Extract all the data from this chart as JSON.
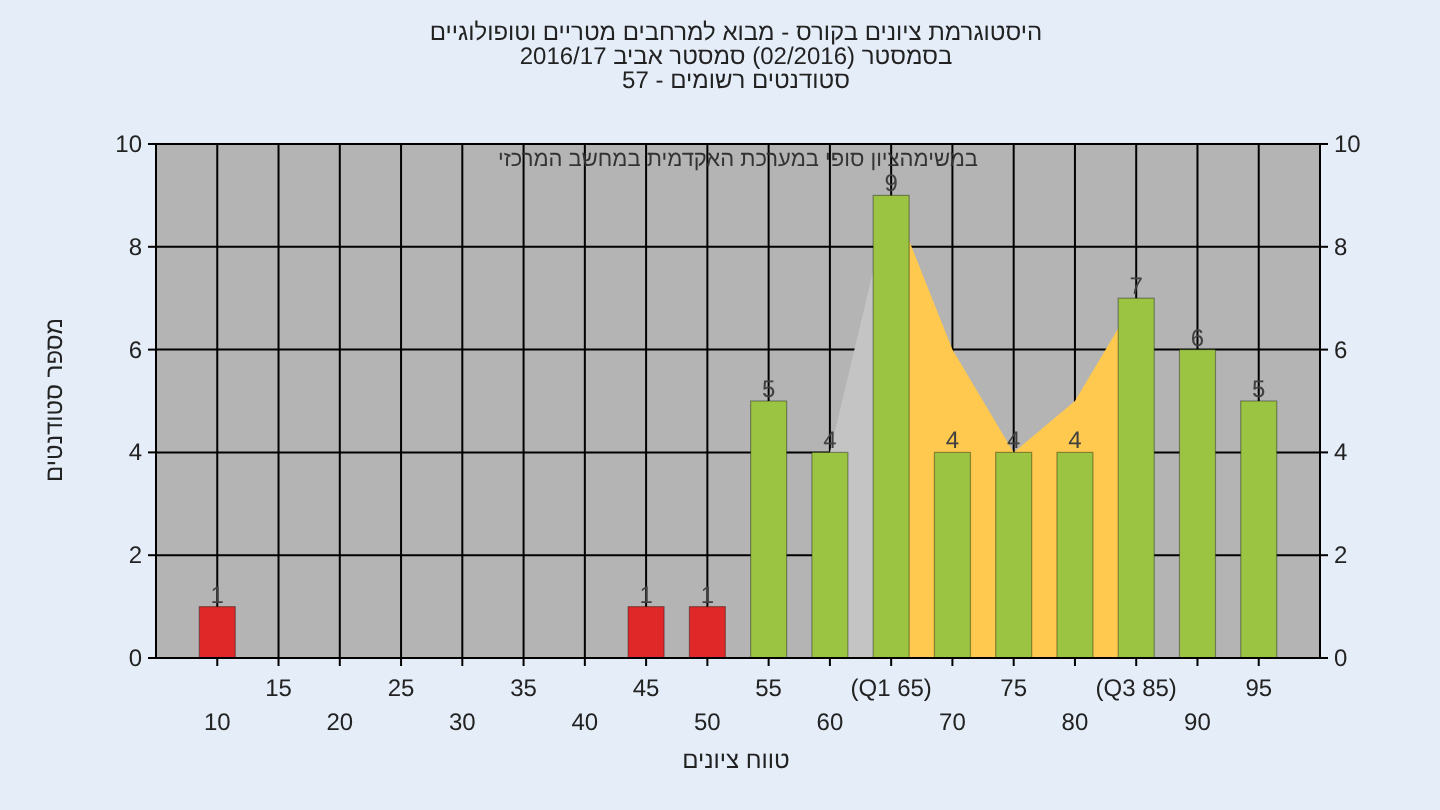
{
  "chart_data": {
    "type": "bar",
    "title": "היסטוגרמת ציונים בקורס - מבוא למרחבים מטריים וטופולוגיים",
    "subtitle": "בסמסטר  (02/2016)  סמסטר אביב 2016/17",
    "annotations": [
      "סטודנטים רשומים - 57",
      "במשימהציון סופי במערכת האקדמית במחשב המרכזי"
    ],
    "xlabel": "טווח ציונים",
    "ylabel": "מספר סטודנטים",
    "categories": [
      "10",
      "15",
      "20",
      "25",
      "30",
      "35",
      "40",
      "45",
      "50",
      "55",
      "60",
      "(Q1 65)",
      "70",
      "75",
      "80",
      "(Q3 85)",
      "90",
      "95"
    ],
    "series": [
      {
        "type": "area",
        "color": "#c4c4c4",
        "values": [
          null,
          null,
          null,
          null,
          null,
          null,
          null,
          null,
          null,
          null,
          4,
          9,
          null,
          null,
          null,
          null,
          null,
          null
        ]
      },
      {
        "type": "area",
        "color": "#ffc94f",
        "values": [
          null,
          null,
          null,
          null,
          null,
          null,
          null,
          null,
          null,
          null,
          null,
          9,
          6,
          4,
          5,
          7,
          null,
          null
        ]
      },
      {
        "values": [
          1,
          null,
          null,
          null,
          null,
          null,
          null,
          1,
          1,
          5,
          4,
          9,
          4,
          4,
          4,
          7,
          6,
          5
        ],
        "value_labels": [
          "1",
          null,
          null,
          null,
          null,
          null,
          null,
          "1",
          "1",
          "5",
          "4",
          "9",
          "4",
          "4",
          "4",
          "7",
          "6",
          "5"
        ],
        "colors": [
          "#e02828",
          null,
          null,
          null,
          null,
          null,
          null,
          "#e02828",
          "#e02828",
          "#9cc443",
          "#9cc443",
          "#9cc443",
          "#9cc443",
          "#9cc443",
          "#9cc443",
          "#9cc443",
          "#9cc443",
          "#9cc443"
        ]
      }
    ],
    "ylim": [
      0,
      10
    ],
    "yticks": [
      0,
      2,
      4,
      6,
      8,
      10
    ],
    "y2lim": [
      0,
      10
    ],
    "y2ticks": [
      0,
      2,
      4,
      6,
      8,
      10
    ],
    "grid": true
  }
}
